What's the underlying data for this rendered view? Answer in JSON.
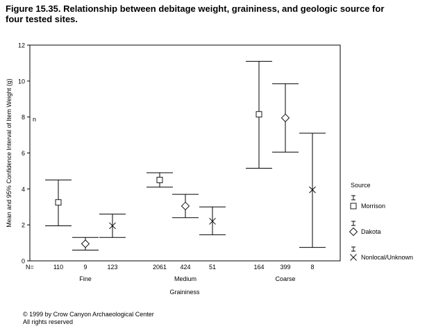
{
  "title": "Figure 15.35.  Relationship between debitage weight, graininess, and geologic source for four tested sites.",
  "footer": {
    "copyright": "© 1999 by Crow Canyon Archaeological Center",
    "rights": "All rights reserved"
  },
  "chart_data": {
    "type": "errorbar",
    "title": "Figure 15.35.  Relationship between debitage weight, graininess, and geologic source for four tested sites.",
    "xlabel": "Graininess",
    "ylabel": "Mean and 95% Confidence Interval of Item Weight (g)",
    "ylim": [
      0,
      12
    ],
    "yticks": [
      0,
      2,
      4,
      6,
      8,
      10,
      12
    ],
    "grid": false,
    "stray_label": "n",
    "n_label": "N=",
    "groups": [
      "Fine",
      "Medium",
      "Coarse"
    ],
    "legend": {
      "title": "Source",
      "placement": "right",
      "entries": [
        {
          "name": "Morrison",
          "marker": "square"
        },
        {
          "name": "Dakota",
          "marker": "diamond"
        },
        {
          "name": "Nonlocal/Unknown",
          "marker": "cross"
        }
      ]
    },
    "points": [
      {
        "group": "Fine",
        "source": "Morrison",
        "n": "110",
        "mean": 3.25,
        "lower": 1.95,
        "upper": 4.5
      },
      {
        "group": "Fine",
        "source": "Dakota",
        "n": "9",
        "mean": 0.95,
        "lower": 0.6,
        "upper": 1.3
      },
      {
        "group": "Fine",
        "source": "Nonlocal/Unknown",
        "n": "123",
        "mean": 1.95,
        "lower": 1.3,
        "upper": 2.6
      },
      {
        "group": "Medium",
        "source": "Morrison",
        "n": "2061",
        "mean": 4.5,
        "lower": 4.1,
        "upper": 4.9
      },
      {
        "group": "Medium",
        "source": "Dakota",
        "n": "424",
        "mean": 3.05,
        "lower": 2.4,
        "upper": 3.7
      },
      {
        "group": "Medium",
        "source": "Nonlocal/Unknown",
        "n": "51",
        "mean": 2.2,
        "lower": 1.45,
        "upper": 3.0
      },
      {
        "group": "Coarse",
        "source": "Morrison",
        "n": "164",
        "mean": 8.15,
        "lower": 5.15,
        "upper": 11.1
      },
      {
        "group": "Coarse",
        "source": "Dakota",
        "n": "399",
        "mean": 7.95,
        "lower": 6.05,
        "upper": 9.85
      },
      {
        "group": "Coarse",
        "source": "Nonlocal/Unknown",
        "n": "8",
        "mean": 3.95,
        "lower": 0.75,
        "upper": 7.1
      }
    ]
  }
}
